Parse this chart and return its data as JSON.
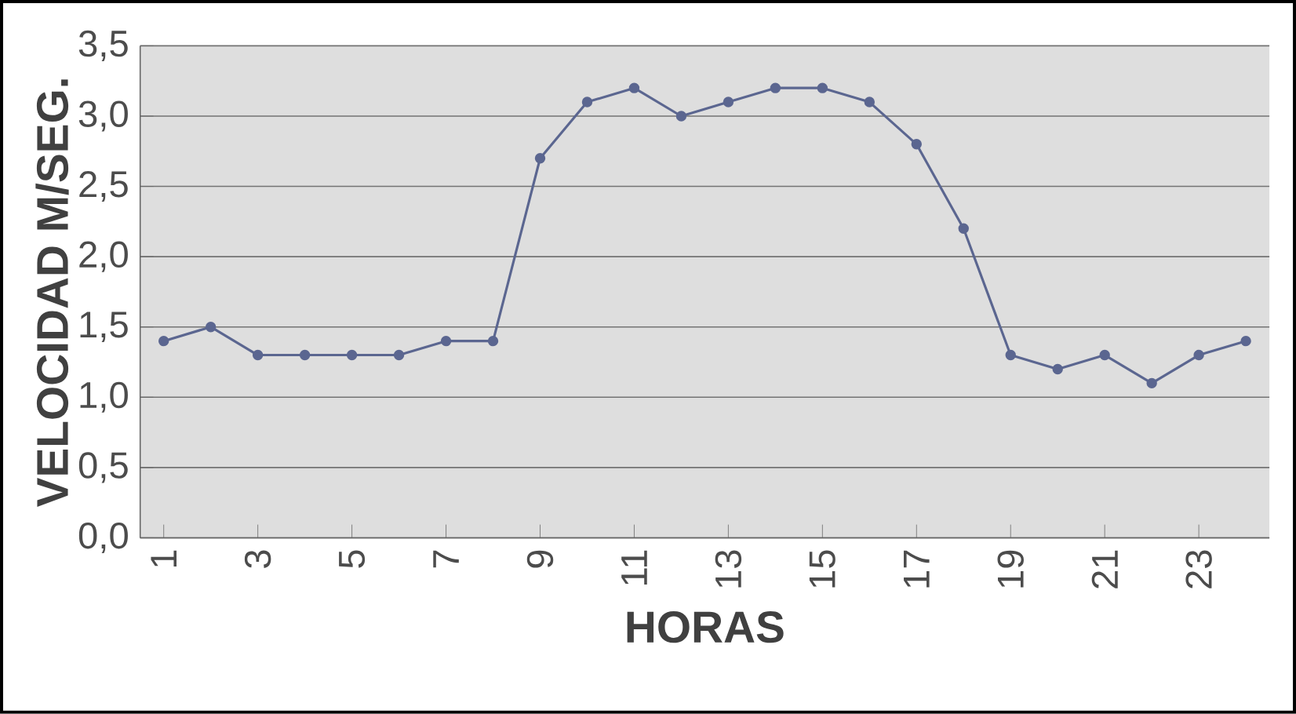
{
  "chart_data": {
    "type": "line",
    "xlabel": "HORAS",
    "ylabel": "VELOCIDAD M/SEG.",
    "categories": [
      "1",
      null,
      "3",
      null,
      "5",
      null,
      "7",
      null,
      "9",
      null,
      "11",
      null,
      "13",
      null,
      "15",
      null,
      "17",
      null,
      "19",
      null,
      "21",
      null,
      "23",
      null
    ],
    "series": [
      {
        "color": "#5b6690",
        "values": [
          1.4,
          1.5,
          1.3,
          1.3,
          1.3,
          1.3,
          1.4,
          1.4,
          2.7,
          3.1,
          3.2,
          3.0,
          3.1,
          3.2,
          3.2,
          3.1,
          2.8,
          2.2,
          1.3,
          1.2,
          1.3,
          1.1,
          1.3,
          1.4
        ]
      }
    ],
    "ylim": [
      0,
      3.5
    ],
    "yticks": [
      {
        "value": 0,
        "label": "0,0"
      },
      {
        "value": 0.5,
        "label": "0,5"
      },
      {
        "value": 1,
        "label": "1,0"
      },
      {
        "value": 1.5,
        "label": "1,5"
      },
      {
        "value": 2,
        "label": "2,0"
      },
      {
        "value": 2.5,
        "label": "2,5"
      },
      {
        "value": 3,
        "label": "3,0"
      },
      {
        "value": 3.5,
        "label": "3,5"
      }
    ],
    "grid": "y",
    "marker": "circle",
    "line_style": "solid"
  }
}
